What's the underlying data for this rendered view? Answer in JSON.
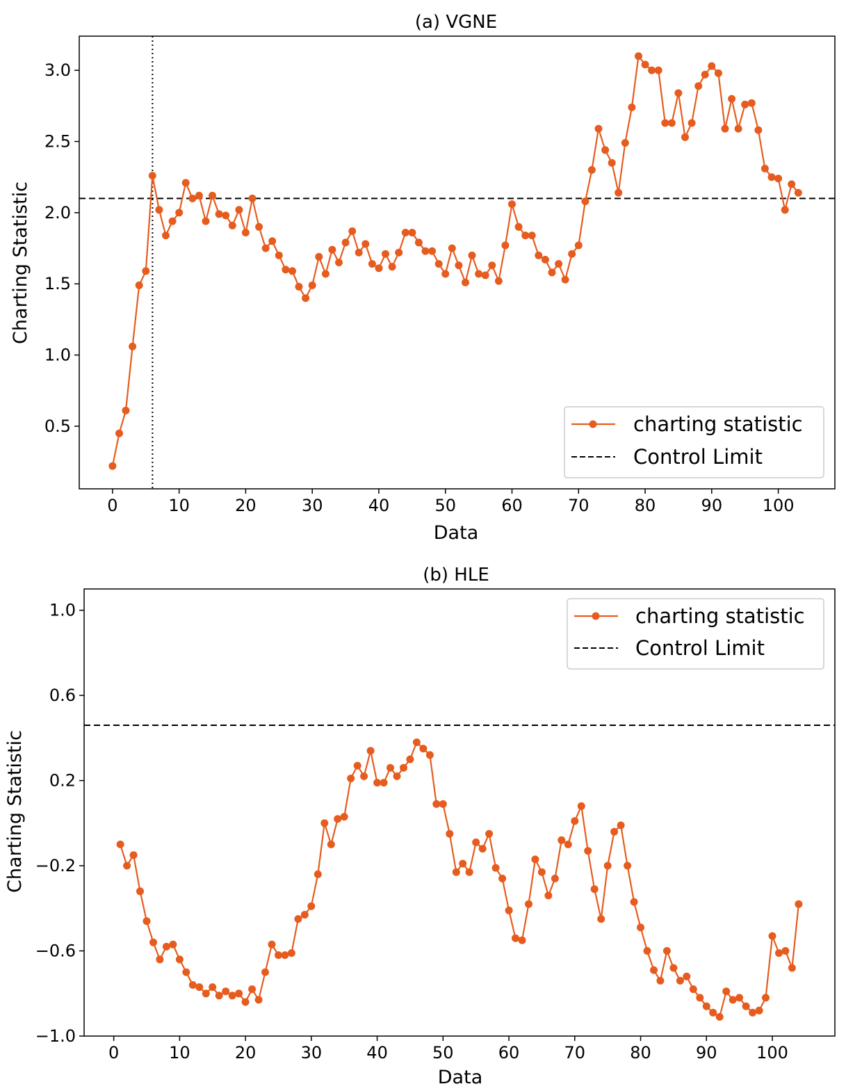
{
  "chart_data": [
    {
      "type": "line",
      "title": "(a) VGNE",
      "xlabel": "Data",
      "ylabel": "Charting Statistic",
      "xlim": [
        -5,
        108.5
      ],
      "ylim": [
        0.06,
        3.24
      ],
      "xticks": [
        0,
        10,
        20,
        30,
        40,
        50,
        60,
        70,
        80,
        90,
        100
      ],
      "yticks": [
        0.5,
        1.0,
        1.5,
        2.0,
        2.5,
        3.0
      ],
      "ytick_labels": [
        "0.5",
        "1.0",
        "1.5",
        "2.0",
        "2.5",
        "3.0"
      ],
      "grid": false,
      "legend_position": "lower-right",
      "control_limit": 2.1,
      "vline_x": 6,
      "series": [
        {
          "name": "charting statistic",
          "color": "#e65c1e",
          "x": [
            0,
            1,
            2,
            3,
            4,
            5,
            6,
            7,
            8,
            9,
            10,
            11,
            12,
            13,
            14,
            15,
            16,
            17,
            18,
            19,
            20,
            21,
            22,
            23,
            24,
            25,
            26,
            27,
            28,
            29,
            30,
            31,
            32,
            33,
            34,
            35,
            36,
            37,
            38,
            39,
            40,
            41,
            42,
            43,
            44,
            45,
            46,
            47,
            48,
            49,
            50,
            51,
            52,
            53,
            54,
            55,
            56,
            57,
            58,
            59,
            60,
            61,
            62,
            63,
            64,
            65,
            66,
            67,
            68,
            69,
            70,
            71,
            72,
            73,
            74,
            75,
            76,
            77,
            78,
            79,
            80,
            81,
            82,
            83,
            84,
            85,
            86,
            87,
            88,
            89,
            90,
            91,
            92,
            93,
            94,
            95,
            96,
            97,
            98,
            99,
            100,
            101,
            102,
            103
          ],
          "y": [
            0.22,
            0.45,
            0.61,
            1.06,
            1.49,
            1.59,
            2.26,
            2.02,
            1.84,
            1.94,
            2.0,
            2.21,
            2.1,
            2.12,
            1.94,
            2.12,
            1.99,
            1.98,
            1.91,
            2.02,
            1.86,
            2.1,
            1.9,
            1.75,
            1.8,
            1.7,
            1.6,
            1.59,
            1.48,
            1.4,
            1.49,
            1.69,
            1.57,
            1.74,
            1.65,
            1.79,
            1.87,
            1.72,
            1.78,
            1.64,
            1.61,
            1.71,
            1.62,
            1.72,
            1.86,
            1.86,
            1.79,
            1.73,
            1.73,
            1.64,
            1.57,
            1.75,
            1.63,
            1.51,
            1.7,
            1.57,
            1.56,
            1.63,
            1.52,
            1.77,
            2.06,
            1.9,
            1.84,
            1.84,
            1.7,
            1.67,
            1.58,
            1.64,
            1.53,
            1.71,
            1.77,
            2.08,
            2.3,
            2.59,
            2.44,
            2.35,
            2.14,
            2.49,
            2.74,
            3.1,
            3.04,
            3.0,
            3.0,
            2.63,
            2.63,
            2.84,
            2.53,
            2.63,
            2.89,
            2.97,
            3.03,
            2.98,
            2.59,
            2.8,
            2.59,
            2.76,
            2.77,
            2.58,
            2.31,
            2.25,
            2.24,
            2.02,
            2.2,
            2.14
          ]
        }
      ],
      "legend": [
        {
          "label": "charting statistic",
          "style": "solid-marker",
          "color": "#e65c1e"
        },
        {
          "label": "Control Limit",
          "style": "dashed",
          "color": "#000000"
        }
      ]
    },
    {
      "type": "line",
      "title": "(b) HLE",
      "xlabel": "Data",
      "ylabel": "Charting Statistic",
      "xlim": [
        -4.5,
        109.5
      ],
      "ylim": [
        -1.0,
        1.1
      ],
      "xticks": [
        0,
        10,
        20,
        30,
        40,
        50,
        60,
        70,
        80,
        90,
        100
      ],
      "yticks": [
        -1.0,
        -0.6,
        -0.2,
        0.2,
        0.6,
        1.0
      ],
      "ytick_labels": [
        "−1.0",
        "−0.6",
        "−0.2",
        "0.2",
        "0.6",
        "1.0"
      ],
      "grid": false,
      "legend_position": "upper-right",
      "control_limit": 0.46,
      "series": [
        {
          "name": "charting statistic",
          "color": "#e65c1e",
          "x": [
            1,
            2,
            3,
            4,
            5,
            6,
            7,
            8,
            9,
            10,
            11,
            12,
            13,
            14,
            15,
            16,
            17,
            18,
            19,
            20,
            21,
            22,
            23,
            24,
            25,
            26,
            27,
            28,
            29,
            30,
            31,
            32,
            33,
            34,
            35,
            36,
            37,
            38,
            39,
            40,
            41,
            42,
            43,
            44,
            45,
            46,
            47,
            48,
            49,
            50,
            51,
            52,
            53,
            54,
            55,
            56,
            57,
            58,
            59,
            60,
            61,
            62,
            63,
            64,
            65,
            66,
            67,
            68,
            69,
            70,
            71,
            72,
            73,
            74,
            75,
            76,
            77,
            78,
            79,
            80,
            81,
            82,
            83,
            84,
            85,
            86,
            87,
            88,
            89,
            90,
            91,
            92,
            93,
            94,
            95,
            96,
            97,
            98,
            99,
            100,
            101,
            102,
            103,
            104
          ],
          "y": [
            -0.1,
            -0.2,
            -0.15,
            -0.32,
            -0.46,
            -0.56,
            -0.64,
            -0.58,
            -0.57,
            -0.64,
            -0.7,
            -0.76,
            -0.77,
            -0.8,
            -0.77,
            -0.81,
            -0.79,
            -0.81,
            -0.8,
            -0.84,
            -0.78,
            -0.83,
            -0.7,
            -0.57,
            -0.62,
            -0.62,
            -0.61,
            -0.45,
            -0.43,
            -0.39,
            -0.24,
            0.0,
            -0.1,
            0.02,
            0.03,
            0.21,
            0.27,
            0.22,
            0.34,
            0.19,
            0.19,
            0.26,
            0.22,
            0.26,
            0.3,
            0.38,
            0.35,
            0.32,
            0.09,
            0.09,
            -0.05,
            -0.23,
            -0.19,
            -0.23,
            -0.09,
            -0.12,
            -0.05,
            -0.21,
            -0.26,
            -0.41,
            -0.54,
            -0.55,
            -0.38,
            -0.17,
            -0.23,
            -0.34,
            -0.26,
            -0.08,
            -0.1,
            0.01,
            0.08,
            -0.13,
            -0.31,
            -0.45,
            -0.2,
            -0.04,
            -0.01,
            -0.2,
            -0.37,
            -0.49,
            -0.6,
            -0.69,
            -0.74,
            -0.6,
            -0.68,
            -0.74,
            -0.72,
            -0.78,
            -0.82,
            -0.86,
            -0.89,
            -0.91,
            -0.79,
            -0.83,
            -0.82,
            -0.86,
            -0.89,
            -0.88,
            -0.82,
            -0.53,
            -0.61,
            -0.6,
            -0.68,
            -0.38
          ]
        }
      ],
      "legend": [
        {
          "label": "charting statistic",
          "style": "solid-marker",
          "color": "#e65c1e"
        },
        {
          "label": "Control Limit",
          "style": "dashed",
          "color": "#000000"
        }
      ]
    }
  ]
}
